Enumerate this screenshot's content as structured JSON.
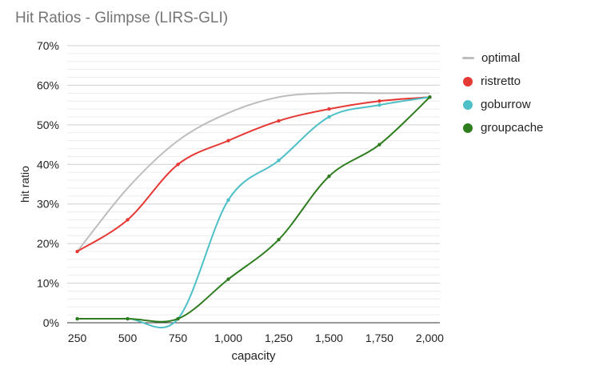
{
  "chart_data": {
    "type": "line",
    "title": "Hit Ratios - Glimpse (LIRS-GLI)",
    "xlabel": "capacity",
    "ylabel": "hit ratio",
    "x": [
      250,
      500,
      750,
      1000,
      1250,
      1500,
      1750,
      2000
    ],
    "x_tick_labels": [
      "250",
      "500",
      "750",
      "1,000",
      "1,250",
      "1,500",
      "1,750",
      "2,000"
    ],
    "y_tick_labels": [
      "0%",
      "10%",
      "20%",
      "30%",
      "40%",
      "50%",
      "60%",
      "70%"
    ],
    "ylim": [
      0,
      70
    ],
    "y_unit": "%",
    "grid": true,
    "legend_position": "right",
    "series": [
      {
        "name": "optimal",
        "color": "#bdbdbd",
        "markers": false,
        "values": [
          18,
          34,
          46,
          53,
          57,
          58,
          58,
          58
        ]
      },
      {
        "name": "ristretto",
        "color": "#e53935",
        "markers": true,
        "values": [
          18,
          26,
          40,
          46,
          51,
          54,
          56,
          57
        ]
      },
      {
        "name": "goburrow",
        "color": "#4dbfc6",
        "markers": true,
        "values": [
          1,
          1,
          1,
          31,
          41,
          52,
          55,
          57
        ]
      },
      {
        "name": "groupcache",
        "color": "#2e7d1e",
        "markers": true,
        "values": [
          1,
          1,
          1,
          11,
          21,
          37,
          45,
          57
        ]
      }
    ]
  }
}
